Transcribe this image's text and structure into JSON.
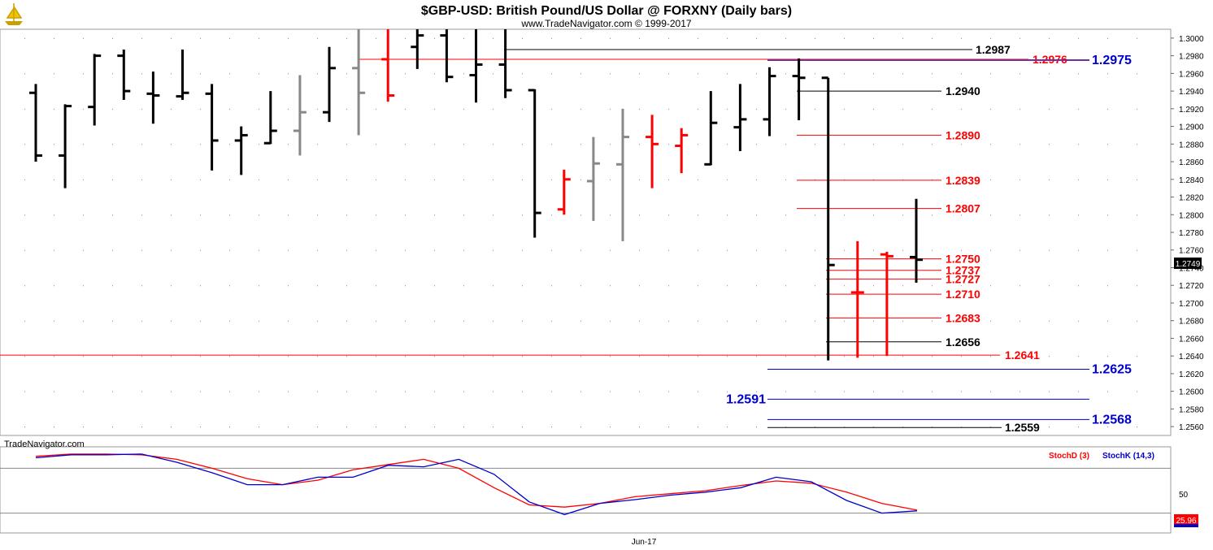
{
  "header": {
    "title": "$GBP-USD:  British Pound/US Dollar @ FORXNY  (Daily bars)",
    "copyright": "www.TradeNavigator.com © 1999-2017",
    "watermark": "TradeNavigator.com"
  },
  "colors": {
    "up": "#000000",
    "down": "#ff0000",
    "neutral": "#888888",
    "blue": "#0000cc",
    "purple": "#7030a0",
    "stochD": "#ff0000",
    "stochK": "#0000cc"
  },
  "chart_data": [
    {
      "type": "ohlc",
      "title": "$GBP-USD:  British Pound/US Dollar @ FORXNY  (Daily bars)",
      "ylim": [
        1.255,
        1.301
      ],
      "y_ticks": [
        "1.3000",
        "1.2980",
        "1.2960",
        "1.2940",
        "1.2920",
        "1.2900",
        "1.2880",
        "1.2860",
        "1.2840",
        "1.2820",
        "1.2800",
        "1.2780",
        "1.2760",
        "1.2740",
        "1.2720",
        "1.2700",
        "1.2680",
        "1.2660",
        "1.2640",
        "1.2620",
        "1.2600",
        "1.2580",
        "1.2560"
      ],
      "last_price": "1.2749",
      "x_label": "Jun-17",
      "bars": [
        {
          "o": 1.2938,
          "h": 1.2948,
          "l": 1.286,
          "c": 1.2867,
          "color": "up"
        },
        {
          "o": 1.2867,
          "h": 1.2925,
          "l": 1.283,
          "c": 1.2923,
          "color": "up"
        },
        {
          "o": 1.2922,
          "h": 1.2982,
          "l": 1.2901,
          "c": 1.298,
          "color": "up"
        },
        {
          "o": 1.298,
          "h": 1.2987,
          "l": 1.293,
          "c": 1.294,
          "color": "up"
        },
        {
          "o": 1.2937,
          "h": 1.2962,
          "l": 1.2903,
          "c": 1.2935,
          "color": "up"
        },
        {
          "o": 1.2934,
          "h": 1.2987,
          "l": 1.293,
          "c": 1.2938,
          "color": "up"
        },
        {
          "o": 1.2937,
          "h": 1.2948,
          "l": 1.285,
          "c": 1.2884,
          "color": "up"
        },
        {
          "o": 1.2884,
          "h": 1.29,
          "l": 1.2845,
          "c": 1.289,
          "color": "up"
        },
        {
          "o": 1.2881,
          "h": 1.294,
          "l": 1.288,
          "c": 1.2895,
          "color": "up"
        },
        {
          "o": 1.2895,
          "h": 1.2958,
          "l": 1.2867,
          "c": 1.2916,
          "color": "neutral"
        },
        {
          "o": 1.2916,
          "h": 1.299,
          "l": 1.2905,
          "c": 1.2966,
          "color": "up"
        },
        {
          "o": 1.2966,
          "h": 1.301,
          "l": 1.289,
          "c": 1.2938,
          "color": "neutral"
        },
        {
          "o": 1.2976,
          "h": 1.301,
          "l": 1.2928,
          "c": 1.2935,
          "color": "down"
        },
        {
          "o": 1.299,
          "h": 1.301,
          "l": 1.2965,
          "c": 1.3003,
          "color": "up"
        },
        {
          "o": 1.3003,
          "h": 1.301,
          "l": 1.295,
          "c": 1.2956,
          "color": "up"
        },
        {
          "o": 1.2958,
          "h": 1.301,
          "l": 1.2927,
          "c": 1.297,
          "color": "up"
        },
        {
          "o": 1.297,
          "h": 1.301,
          "l": 1.2932,
          "c": 1.2941,
          "color": "up"
        },
        {
          "o": 1.2941,
          "h": 1.2942,
          "l": 1.2774,
          "c": 1.2802,
          "color": "up"
        },
        {
          "o": 1.2806,
          "h": 1.2851,
          "l": 1.28,
          "c": 1.284,
          "color": "down"
        },
        {
          "o": 1.2838,
          "h": 1.2888,
          "l": 1.2793,
          "c": 1.2858,
          "color": "neutral"
        },
        {
          "o": 1.2857,
          "h": 1.292,
          "l": 1.277,
          "c": 1.2888,
          "color": "neutral"
        },
        {
          "o": 1.2888,
          "h": 1.2913,
          "l": 1.283,
          "c": 1.288,
          "color": "down"
        },
        {
          "o": 1.2878,
          "h": 1.2898,
          "l": 1.2847,
          "c": 1.289,
          "color": "down"
        },
        {
          "o": 1.2857,
          "h": 1.294,
          "l": 1.2856,
          "c": 1.2904,
          "color": "up"
        },
        {
          "o": 1.2899,
          "h": 1.2948,
          "l": 1.2872,
          "c": 1.2908,
          "color": "up"
        },
        {
          "o": 1.2908,
          "h": 1.2967,
          "l": 1.2889,
          "c": 1.2957,
          "color": "up"
        },
        {
          "o": 1.2957,
          "h": 1.2977,
          "l": 1.2907,
          "c": 1.2955,
          "color": "up"
        },
        {
          "o": 1.2955,
          "h": 1.2955,
          "l": 1.2635,
          "c": 1.2743,
          "color": "up"
        },
        {
          "o": 1.2712,
          "h": 1.277,
          "l": 1.2638,
          "c": 1.2712,
          "color": "down"
        },
        {
          "o": 1.2755,
          "h": 1.2758,
          "l": 1.264,
          "c": 1.2753,
          "color": "down"
        },
        {
          "o": 1.2752,
          "h": 1.2818,
          "l": 1.2723,
          "c": 1.2749,
          "color": "up"
        }
      ],
      "levels": [
        {
          "label": "1.2987",
          "value": 1.2987,
          "color": "up",
          "size": "normal"
        },
        {
          "label": "1.2976",
          "value": 1.2976,
          "color": "down",
          "size": "normal"
        },
        {
          "label": "1.2975",
          "value": 1.2975,
          "color": "blue",
          "size": "big"
        },
        {
          "label": "1.2940",
          "value": 1.294,
          "color": "up",
          "size": "normal"
        },
        {
          "label": "1.2890",
          "value": 1.289,
          "color": "down",
          "size": "normal"
        },
        {
          "label": "1.2839",
          "value": 1.2839,
          "color": "down",
          "size": "normal"
        },
        {
          "label": "1.2807",
          "value": 1.2807,
          "color": "down",
          "size": "normal"
        },
        {
          "label": "1.2750",
          "value": 1.275,
          "color": "down",
          "size": "normal"
        },
        {
          "label": "1.2737",
          "value": 1.2737,
          "color": "down",
          "size": "normal"
        },
        {
          "label": "1.2727",
          "value": 1.2727,
          "color": "down",
          "size": "normal"
        },
        {
          "label": "1.2710",
          "value": 1.271,
          "color": "down",
          "size": "normal"
        },
        {
          "label": "1.2683",
          "value": 1.2683,
          "color": "down",
          "size": "normal"
        },
        {
          "label": "1.2656",
          "value": 1.2656,
          "color": "up",
          "size": "normal"
        },
        {
          "label": "1.2641",
          "value": 1.2641,
          "color": "down",
          "size": "normal"
        },
        {
          "label": "1.2625",
          "value": 1.2625,
          "color": "blue",
          "size": "big"
        },
        {
          "label": "1.2591",
          "value": 1.2591,
          "color": "blue",
          "size": "big"
        },
        {
          "label": "1.2568",
          "value": 1.2568,
          "color": "blue",
          "size": "big"
        },
        {
          "label": "1.2559",
          "value": 1.2559,
          "color": "up",
          "size": "normal"
        }
      ]
    },
    {
      "type": "line",
      "title": "",
      "ylim": [
        0,
        100
      ],
      "y_ticks": [
        "50"
      ],
      "last_value": "25.96",
      "series": [
        {
          "name": "StochD (3)",
          "color": "stochD",
          "values": [
            96,
            99,
            99,
            98,
            92,
            80,
            66,
            58,
            64,
            78,
            85,
            92,
            80,
            54,
            31,
            28,
            33,
            42,
            46,
            50,
            57,
            63,
            60,
            48,
            33,
            24
          ]
        },
        {
          "name": "StochK (14,3)",
          "color": "stochK",
          "values": [
            94,
            98,
            98,
            99,
            88,
            74,
            58,
            58,
            68,
            68,
            84,
            82,
            92,
            72,
            35,
            18,
            33,
            38,
            44,
            48,
            54,
            68,
            62,
            37,
            20,
            23
          ]
        }
      ]
    }
  ]
}
